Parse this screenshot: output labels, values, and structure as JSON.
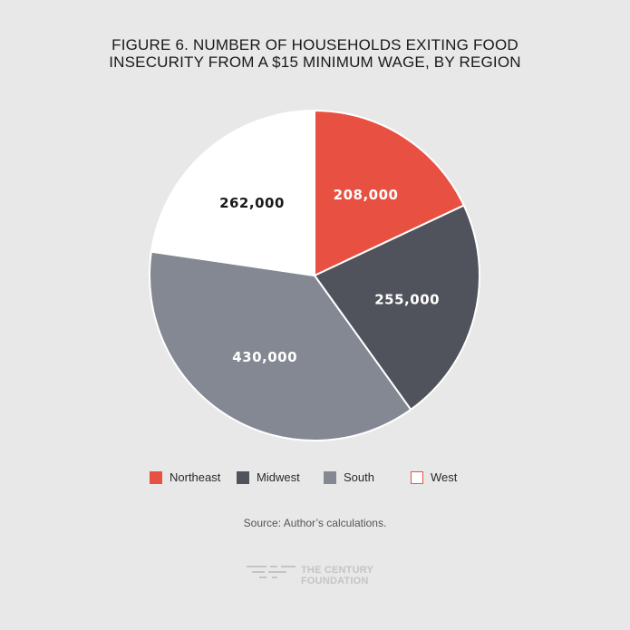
{
  "title_lines": [
    "FIGURE 6. NUMBER OF HOUSEHOLDS EXITING FOOD",
    "INSECURITY FROM A $15 MINIMUM WAGE, BY REGION"
  ],
  "chart_data": {
    "type": "pie",
    "title": "FIGURE 6. NUMBER OF HOUSEHOLDS EXITING FOOD INSECURITY FROM A $15 MINIMUM WAGE, BY REGION",
    "categories": [
      "Northeast",
      "Midwest",
      "South",
      "West"
    ],
    "values": [
      208000,
      255000,
      430000,
      262000
    ],
    "labels": [
      "208,000",
      "255,000",
      "430,000",
      "262,000"
    ],
    "colors": [
      "#e85142",
      "#51535c",
      "#838892",
      "#ffffff"
    ],
    "label_colors": [
      "#ffffff",
      "#ffffff",
      "#ffffff",
      "#1a1a1a"
    ],
    "legend_position": "bottom"
  },
  "legend": [
    {
      "label": "Northeast",
      "color": "#e85142"
    },
    {
      "label": "Midwest",
      "color": "#51535c"
    },
    {
      "label": "South",
      "color": "#838892"
    },
    {
      "label": "West",
      "color": "#ffffff"
    }
  ],
  "source": "Source: Author’s calculations.",
  "logo": {
    "line1": "THE CENTURY",
    "line2": "FOUNDATION",
    "icon": "century-foundation-logo-icon"
  }
}
